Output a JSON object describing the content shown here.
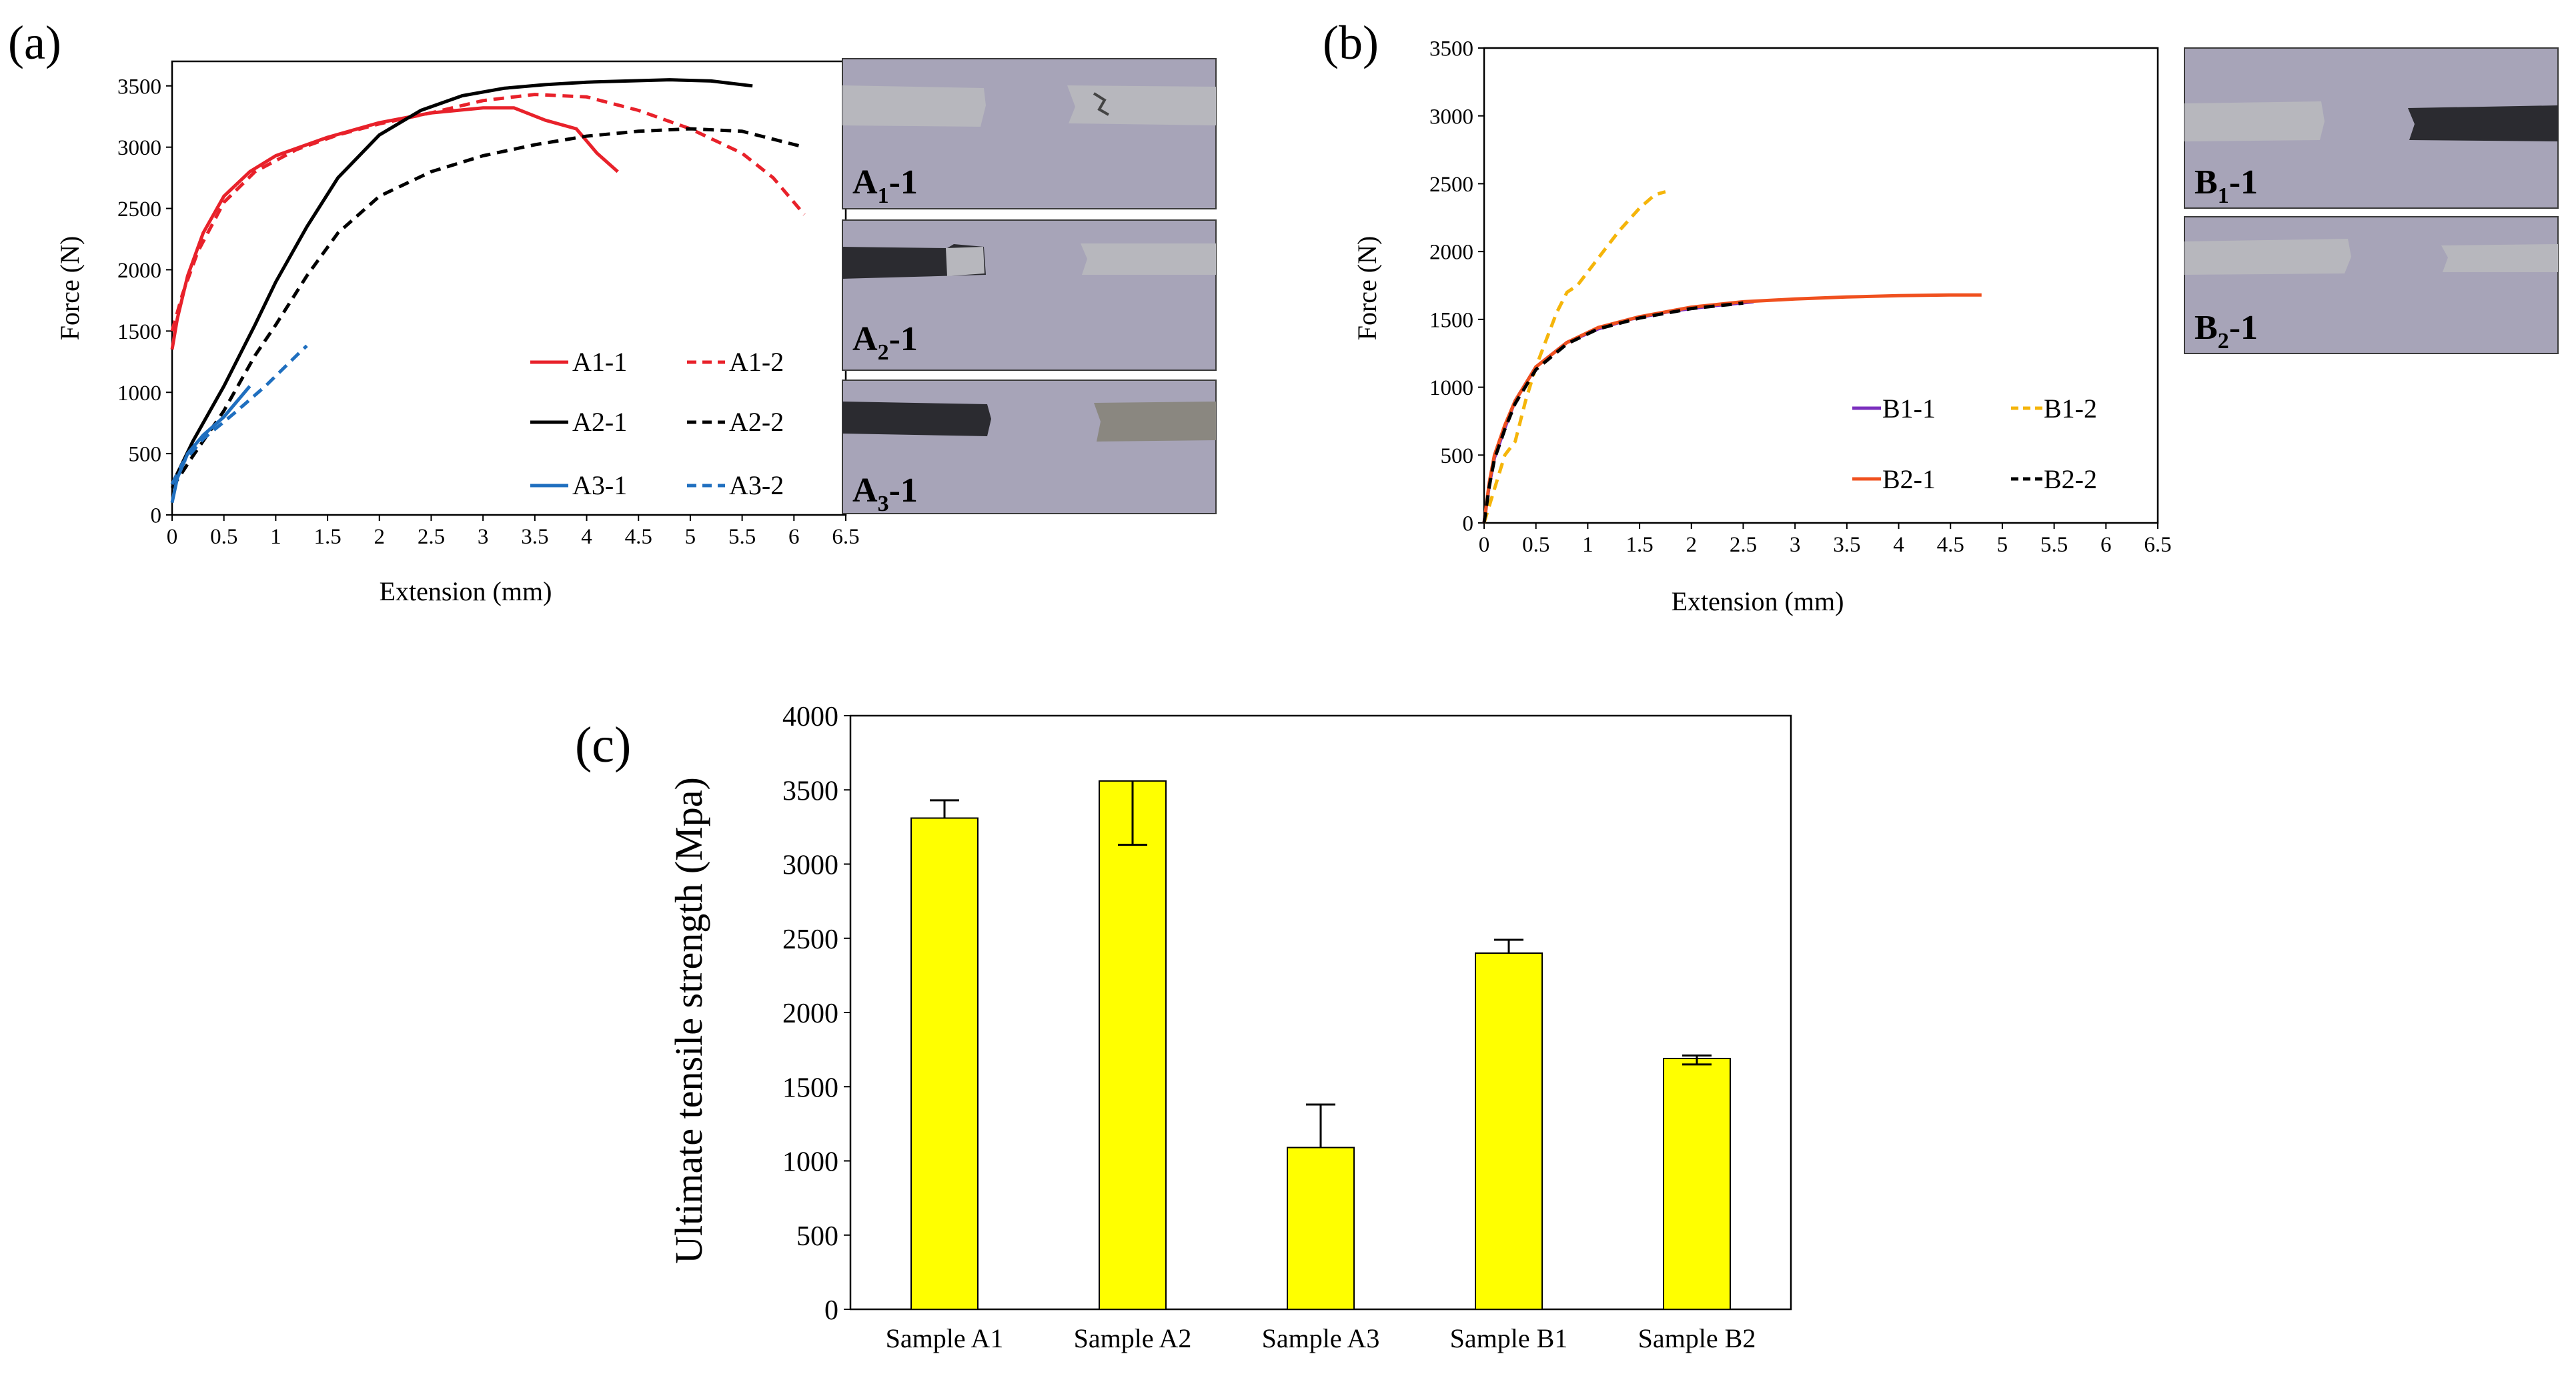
{
  "chart_data": [
    {
      "panel": "a",
      "panel_label": "(a)",
      "type": "line",
      "title": "",
      "xlabel": "Extension (mm)",
      "ylabel": "Force (N)",
      "xlim": [
        0,
        6.5
      ],
      "ylim": [
        0,
        3700
      ],
      "xticks": [
        0,
        0.5,
        1,
        1.5,
        2,
        2.5,
        3,
        3.5,
        4,
        4.5,
        5,
        5.5,
        6,
        6.5
      ],
      "yticks": [
        0,
        500,
        1000,
        1500,
        2000,
        2500,
        3000,
        3500
      ],
      "grid": false,
      "legend": "bottom-right",
      "series": [
        {
          "name": "A1-1",
          "color": "#e8212a",
          "dash": "solid",
          "x": [
            0,
            0.05,
            0.15,
            0.3,
            0.5,
            0.75,
            1,
            1.5,
            2,
            2.5,
            3,
            3.3,
            3.6,
            3.9,
            4.1,
            4.3
          ],
          "y": [
            1350,
            1600,
            1950,
            2300,
            2600,
            2800,
            2930,
            3080,
            3200,
            3280,
            3320,
            3320,
            3220,
            3150,
            2950,
            2800
          ]
        },
        {
          "name": "A1-2",
          "color": "#e8212a",
          "dash": "dash",
          "x": [
            0,
            0.1,
            0.25,
            0.5,
            0.8,
            1.2,
            1.6,
            2,
            2.5,
            3,
            3.5,
            4,
            4.5,
            5,
            5.5,
            5.8,
            6.1
          ],
          "y": [
            1500,
            1800,
            2150,
            2550,
            2800,
            2980,
            3100,
            3190,
            3280,
            3380,
            3430,
            3410,
            3300,
            3150,
            2950,
            2750,
            2450
          ]
        },
        {
          "name": "A2-1",
          "color": "#000000",
          "dash": "solid",
          "x": [
            0,
            0.2,
            0.5,
            0.8,
            1,
            1.3,
            1.6,
            2,
            2.4,
            2.8,
            3.2,
            3.6,
            4,
            4.4,
            4.8,
            5.2,
            5.6
          ],
          "y": [
            250,
            600,
            1050,
            1550,
            1900,
            2350,
            2750,
            3100,
            3300,
            3420,
            3480,
            3510,
            3530,
            3540,
            3550,
            3540,
            3500
          ]
        },
        {
          "name": "A2-2",
          "color": "#000000",
          "dash": "dash",
          "x": [
            0,
            0.2,
            0.5,
            0.8,
            1,
            1.3,
            1.6,
            2,
            2.5,
            3,
            3.5,
            4,
            4.5,
            5,
            5.5,
            6.1
          ],
          "y": [
            220,
            480,
            850,
            1300,
            1550,
            1950,
            2300,
            2600,
            2800,
            2930,
            3020,
            3090,
            3130,
            3150,
            3130,
            3000
          ]
        },
        {
          "name": "A3-1",
          "color": "#1f6fbf",
          "dash": "solid",
          "x": [
            0,
            0.05,
            0.15,
            0.3,
            0.5,
            0.75
          ],
          "y": [
            100,
            300,
            500,
            650,
            800,
            1050
          ]
        },
        {
          "name": "A3-2",
          "color": "#1f6fbf",
          "dash": "dash",
          "x": [
            0,
            0.1,
            0.3,
            0.6,
            0.9,
            1.2,
            1.3
          ],
          "y": [
            250,
            420,
            620,
            830,
            1050,
            1300,
            1380
          ]
        }
      ],
      "photos": [
        {
          "label_main": "A",
          "label_sub": "1",
          "label_suffix": "-1"
        },
        {
          "label_main": "A",
          "label_sub": "2",
          "label_suffix": "-1"
        },
        {
          "label_main": "A",
          "label_sub": "3",
          "label_suffix": "-1"
        }
      ]
    },
    {
      "panel": "b",
      "panel_label": "(b)",
      "type": "line",
      "title": "",
      "xlabel": "Extension (mm)",
      "ylabel": "Force (N)",
      "xlim": [
        0,
        6.5
      ],
      "ylim": [
        0,
        3500
      ],
      "xticks": [
        0,
        0.5,
        1,
        1.5,
        2,
        2.5,
        3,
        3.5,
        4,
        4.5,
        5,
        5.5,
        6,
        6.5
      ],
      "yticks": [
        0,
        500,
        1000,
        1500,
        2000,
        2500,
        3000,
        3500
      ],
      "grid": false,
      "legend": "bottom-right",
      "series": [
        {
          "name": "B1-1",
          "color": "#7b2fbe",
          "dash": "solid",
          "x": [
            0,
            0.05,
            0.1,
            0.2,
            0.3,
            0.5,
            0.8,
            1.1,
            1.4,
            1.8,
            2.2,
            2.6
          ],
          "y": [
            0,
            280,
            480,
            700,
            900,
            1150,
            1330,
            1430,
            1500,
            1560,
            1600,
            1630
          ]
        },
        {
          "name": "B1-2",
          "color": "#f5b50a",
          "dash": "dash",
          "x": [
            0,
            0.1,
            0.2,
            0.3,
            0.4,
            0.5,
            0.6,
            0.7,
            0.8,
            0.9,
            1.1,
            1.3,
            1.5,
            1.65,
            1.75
          ],
          "y": [
            0,
            250,
            500,
            600,
            900,
            1150,
            1350,
            1550,
            1700,
            1750,
            1950,
            2150,
            2320,
            2420,
            2440
          ]
        },
        {
          "name": "B2-1",
          "color": "#f0501e",
          "dash": "solid",
          "x": [
            0,
            0.05,
            0.1,
            0.2,
            0.3,
            0.5,
            0.8,
            1.1,
            1.5,
            2,
            2.5,
            3,
            3.5,
            4,
            4.5,
            4.8
          ],
          "y": [
            0,
            300,
            500,
            720,
            900,
            1150,
            1330,
            1440,
            1520,
            1590,
            1630,
            1650,
            1665,
            1675,
            1680,
            1680
          ]
        },
        {
          "name": "B2-2",
          "color": "#000000",
          "dash": "dash",
          "x": [
            0,
            0.05,
            0.1,
            0.2,
            0.3,
            0.5,
            0.8,
            1.1,
            1.5,
            2,
            2.5
          ],
          "y": [
            0,
            270,
            470,
            690,
            880,
            1130,
            1320,
            1430,
            1510,
            1580,
            1620
          ]
        }
      ],
      "photos": [
        {
          "label_main": "B",
          "label_sub": "1",
          "label_suffix": "-1"
        },
        {
          "label_main": "B",
          "label_sub": "2",
          "label_suffix": "-1"
        }
      ]
    },
    {
      "panel": "c",
      "panel_label": "(c)",
      "type": "bar",
      "title": "",
      "xlabel": "",
      "ylabel": "Ultimate tensile strength (Mpa)",
      "ylim": [
        0,
        4000
      ],
      "yticks": [
        0,
        500,
        1000,
        1500,
        2000,
        2500,
        3000,
        3500,
        4000
      ],
      "grid": false,
      "bar_color": "#ffff00",
      "categories": [
        "Sample A1",
        "Sample A2",
        "Sample A3",
        "Sample B1",
        "Sample B2"
      ],
      "values": [
        3310,
        3560,
        1090,
        2400,
        1690
      ],
      "error_plus": [
        120,
        0,
        290,
        90,
        20
      ],
      "error_minus": [
        0,
        430,
        0,
        0,
        40
      ]
    }
  ]
}
